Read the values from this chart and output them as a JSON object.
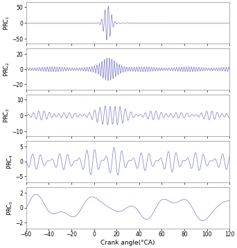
{
  "x_min": -60,
  "x_max": 120,
  "x_ticks": [
    -60,
    -40,
    -20,
    0,
    20,
    40,
    60,
    80,
    100,
    120
  ],
  "subplots": [
    {
      "label": "PRC$_1$",
      "ylim": [
        -65,
        65
      ],
      "yticks": [
        -50,
        0,
        50
      ],
      "signal_type": "prc1"
    },
    {
      "label": "PRC$_2$",
      "ylim": [
        -27,
        27
      ],
      "yticks": [
        -20,
        0,
        20
      ],
      "signal_type": "prc2"
    },
    {
      "label": "PRC$_3$",
      "ylim": [
        -13,
        13
      ],
      "yticks": [
        -10,
        0,
        10
      ],
      "signal_type": "prc3"
    },
    {
      "label": "PRC$_4$",
      "ylim": [
        -7,
        7
      ],
      "yticks": [
        -5,
        0,
        5
      ],
      "signal_type": "prc4"
    },
    {
      "label": "PRC$_5$",
      "ylim": [
        -2.8,
        2.8
      ],
      "yticks": [
        -2,
        0,
        2
      ],
      "signal_type": "prc5"
    }
  ],
  "line_color": "#7878c8",
  "xlabel": "Crank angle(°CA)",
  "background_color": "#ffffff",
  "fig_width": 3.42,
  "fig_height": 3.59,
  "dpi": 100
}
